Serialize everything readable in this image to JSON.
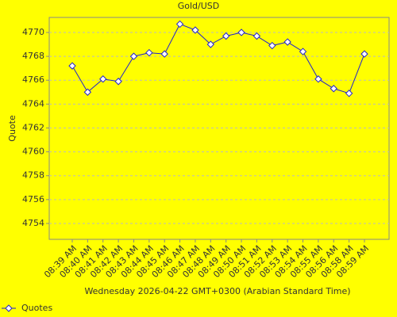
{
  "chart_data": {
    "type": "line",
    "title": "Gold/USD",
    "y_label": "Quote",
    "x_label": "Wednesday 2026-04-22 GMT+0300 (Arabian Standard Time)",
    "categories": [
      "08:39 AM",
      "08:40 AM",
      "08:41 AM",
      "08:42 AM",
      "08:43 AM",
      "08:44 AM",
      "08:45 AM",
      "08:46 AM",
      "08:47 AM",
      "08:48 AM",
      "08:49 AM",
      "08:50 AM",
      "08:51 AM",
      "08:52 AM",
      "08:53 AM",
      "08:54 AM",
      "08:55 AM",
      "08:56 AM",
      "08:58 AM",
      "08:59 AM"
    ],
    "series": [
      {
        "name": "Quotes",
        "color": "#2222cc",
        "values": [
          4767.2,
          4765.0,
          4766.1,
          4765.9,
          4768.0,
          4768.3,
          4768.2,
          4770.7,
          4770.2,
          4769.0,
          4769.7,
          4770.0,
          4769.7,
          4768.9,
          4769.2,
          4768.4,
          4766.1,
          4765.3,
          4764.9,
          4768.2
        ]
      }
    ],
    "ylim": [
      4752.67,
      4771.26
    ],
    "yticks": [
      4754,
      4756,
      4758,
      4760,
      4762,
      4764,
      4766,
      4768,
      4770
    ],
    "grid": true,
    "legend": "bottom-left"
  }
}
